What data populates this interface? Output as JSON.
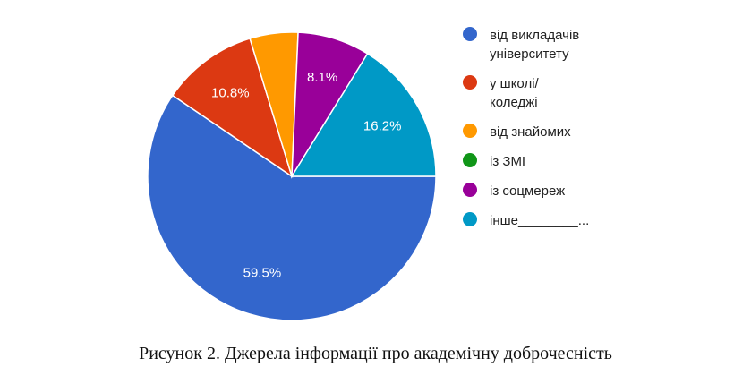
{
  "chart_data": {
    "type": "pie",
    "title": "",
    "slices": [
      {
        "label": "від викладачів університету",
        "legend_lines": [
          "від викладачів",
          "університету"
        ],
        "value": 59.5,
        "value_label": "59.5%",
        "color": "#3366cc"
      },
      {
        "label": "у школі/ коледжі",
        "legend_lines": [
          "у школі/",
          "коледжі"
        ],
        "value": 10.8,
        "value_label": "10.8%",
        "color": "#dc3912"
      },
      {
        "label": "від знайомих",
        "legend_lines": [
          "від знайомих"
        ],
        "value": 5.4,
        "value_label": "",
        "color": "#ff9900"
      },
      {
        "label": "із ЗМІ",
        "legend_lines": [
          "із ЗМІ"
        ],
        "value": 0,
        "value_label": "",
        "color": "#109618"
      },
      {
        "label": "із соцмереж",
        "legend_lines": [
          "із соцмереж"
        ],
        "value": 8.1,
        "value_label": "8.1%",
        "color": "#990099"
      },
      {
        "label": "інше________...",
        "legend_lines": [
          "інше________..."
        ],
        "value": 16.2,
        "value_label": "16.2%",
        "color": "#0099c6"
      }
    ],
    "legend_position": "right"
  },
  "caption": "Рисунок 2. Джерела інформації про академічну доброчесність"
}
